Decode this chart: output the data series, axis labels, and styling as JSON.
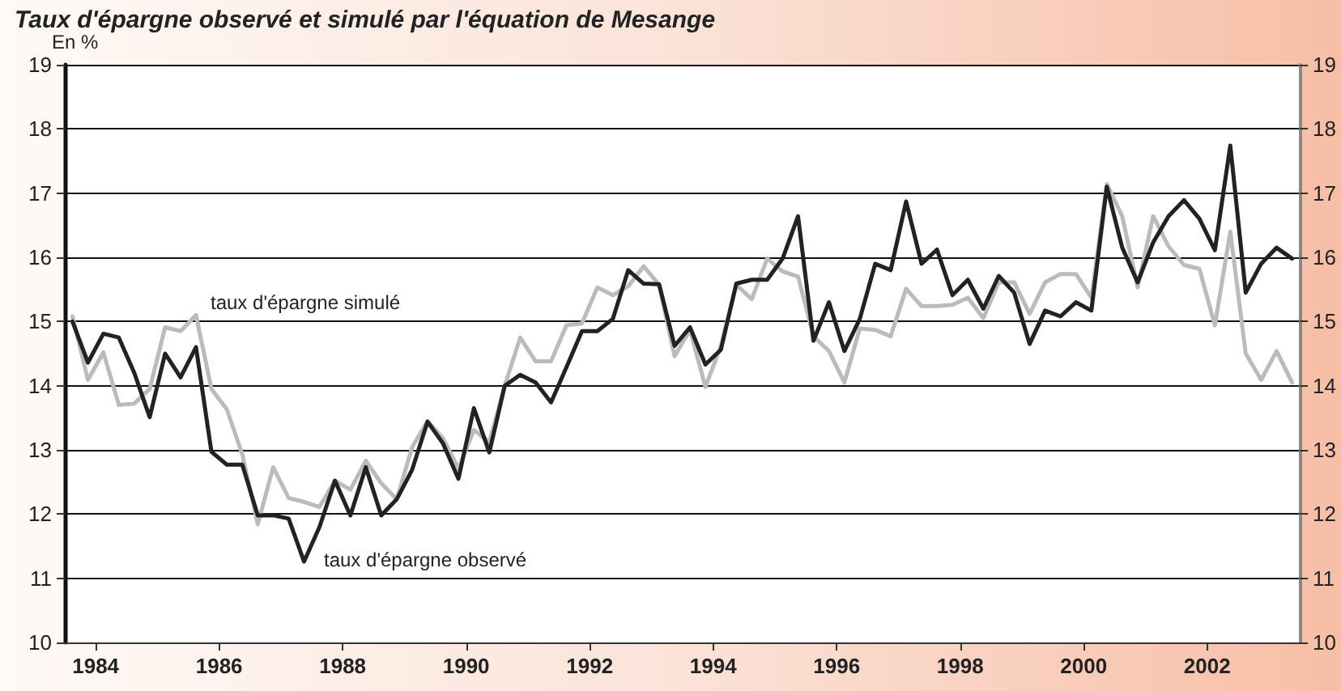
{
  "chart_data": {
    "type": "line",
    "title": "Taux d'épargne observé et simulé par l'équation de Mesange",
    "ylabel": "En %",
    "x": [
      1984.125,
      1984.375,
      1984.625,
      1984.875,
      1985.125,
      1985.375,
      1985.625,
      1985.875,
      1986.125,
      1986.375,
      1986.625,
      1986.875,
      1987.125,
      1987.375,
      1987.625,
      1987.875,
      1988.125,
      1988.375,
      1988.625,
      1988.875,
      1989.125,
      1989.375,
      1989.625,
      1989.875,
      1990.125,
      1990.375,
      1990.625,
      1990.875,
      1991.125,
      1991.375,
      1991.625,
      1991.875,
      1992.125,
      1992.375,
      1992.625,
      1992.875,
      1993.125,
      1993.375,
      1993.625,
      1993.875,
      1994.125,
      1994.375,
      1994.625,
      1994.875,
      1995.125,
      1995.375,
      1995.625,
      1995.875,
      1996.125,
      1996.375,
      1996.625,
      1996.875,
      1997.125,
      1997.375,
      1997.625,
      1997.875,
      1998.125,
      1998.375,
      1998.625,
      1998.875,
      1999.125,
      1999.375,
      1999.625,
      1999.875,
      2000.125,
      2000.375,
      2000.625,
      2000.875,
      2001.125,
      2001.375,
      2001.625,
      2001.875,
      2002.125,
      2002.375,
      2002.625,
      2002.875,
      2003.125,
      2003.375,
      2003.625,
      2003.875
    ],
    "series": [
      {
        "color": "#222222",
        "values": [
          15.0,
          14.36,
          14.81,
          14.75,
          14.2,
          13.51,
          14.5,
          14.13,
          14.6,
          12.97,
          12.77,
          12.77,
          11.98,
          11.98,
          11.93,
          11.26,
          11.8,
          12.52,
          11.98,
          12.73,
          11.98,
          12.23,
          12.69,
          13.44,
          13.1,
          12.55,
          13.65,
          12.96,
          14.0,
          14.17,
          14.05,
          13.74,
          14.29,
          14.85,
          14.85,
          15.04,
          15.8,
          15.59,
          15.58,
          14.62,
          14.91,
          14.33,
          14.56,
          15.59,
          15.65,
          15.65,
          15.98,
          16.64,
          14.7,
          15.3,
          14.54,
          15.04,
          15.9,
          15.8,
          16.87,
          15.9,
          16.12,
          15.41,
          15.65,
          15.2,
          15.71,
          15.45,
          14.65,
          15.17,
          15.08,
          15.3,
          15.17,
          17.1,
          16.15,
          15.61,
          16.23,
          16.64,
          16.89,
          16.6,
          16.11,
          17.74,
          15.45,
          15.9,
          16.15,
          15.98
        ]
      },
      {
        "color": "#bbbbbb",
        "values": [
          15.08,
          14.09,
          14.52,
          13.7,
          13.72,
          13.95,
          14.91,
          14.85,
          15.1,
          13.95,
          13.63,
          12.93,
          11.84,
          12.73,
          12.25,
          12.19,
          12.11,
          12.52,
          12.38,
          12.83,
          12.48,
          12.23,
          13.04,
          13.45,
          13.18,
          12.71,
          13.31,
          13.12,
          14.0,
          14.75,
          14.38,
          14.38,
          14.94,
          14.97,
          15.53,
          15.41,
          15.55,
          15.86,
          15.57,
          14.46,
          14.87,
          13.98,
          14.62,
          15.57,
          15.35,
          15.98,
          15.78,
          15.7,
          14.77,
          14.54,
          14.05,
          14.89,
          14.87,
          14.77,
          15.51,
          15.24,
          15.24,
          15.26,
          15.37,
          15.05,
          15.61,
          15.61,
          15.12,
          15.61,
          15.74,
          15.74,
          15.37,
          17.14,
          16.64,
          15.53,
          16.64,
          16.17,
          15.88,
          15.82,
          14.94,
          16.4,
          14.5,
          14.09,
          14.54,
          14.05
        ]
      }
    ],
    "annotations": [
      "taux d'épargne simulé",
      "taux d'épargne observé"
    ],
    "xlim": [
      1984,
      2004
    ],
    "xticks": [
      {
        "value": 1984.5,
        "label": "1984"
      },
      {
        "value": 1986.5,
        "label": "1986"
      },
      {
        "value": 1988.5,
        "label": "1988"
      },
      {
        "value": 1990.5,
        "label": "1990"
      },
      {
        "value": 1992.5,
        "label": "1992"
      },
      {
        "value": 1994.5,
        "label": "1994"
      },
      {
        "value": 1996.5,
        "label": "1996"
      },
      {
        "value": 1998.5,
        "label": "1998"
      },
      {
        "value": 2000.5,
        "label": "2000"
      },
      {
        "value": 2002.5,
        "label": "2002"
      }
    ],
    "ylim": [
      10,
      19
    ],
    "yticks": [
      10,
      11,
      12,
      13,
      14,
      15,
      16,
      17,
      18,
      19
    ],
    "y2lim": [
      10,
      19
    ],
    "y2ticks": [
      10,
      11,
      12,
      13,
      14,
      15,
      16,
      17,
      18,
      19
    ],
    "grid": "y",
    "marker": "none",
    "line_style": "solid"
  }
}
